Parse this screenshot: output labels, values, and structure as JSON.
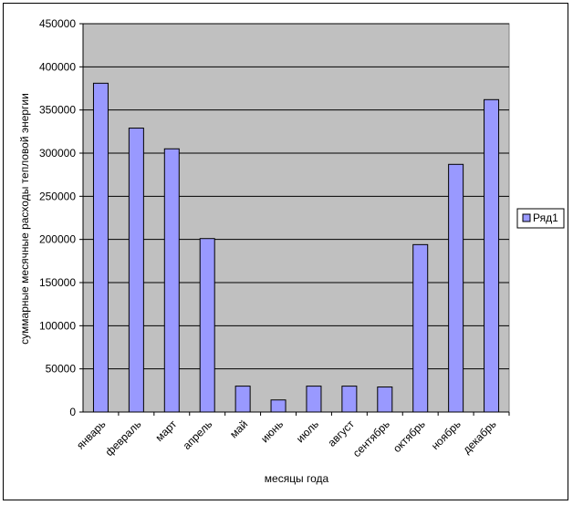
{
  "chart_data": {
    "type": "bar",
    "title": "",
    "xlabel": "месяцы года",
    "ylabel": "суммарные месячные расходы тепловой энергии",
    "categories": [
      "январь",
      "февраль",
      "март",
      "апрель",
      "май",
      "июнь",
      "июль",
      "август",
      "сентябрь",
      "октябрь",
      "ноябрь",
      "декабрь"
    ],
    "series": [
      {
        "name": "Ряд1",
        "values": [
          381000,
          329000,
          305000,
          201000,
          30000,
          14000,
          30000,
          30000,
          29000,
          194000,
          287000,
          362000
        ]
      }
    ],
    "ylim": [
      0,
      450000
    ],
    "yticks": [
      "0",
      "50000",
      "100000",
      "150000",
      "200000",
      "250000",
      "300000",
      "350000",
      "400000",
      "450000"
    ],
    "grid": true,
    "legend_position": "right",
    "colors": {
      "bar_fill": "#9999ff",
      "bar_stroke": "#000000",
      "plot_bg": "#c0c0c0",
      "gridline": "#000000"
    }
  }
}
